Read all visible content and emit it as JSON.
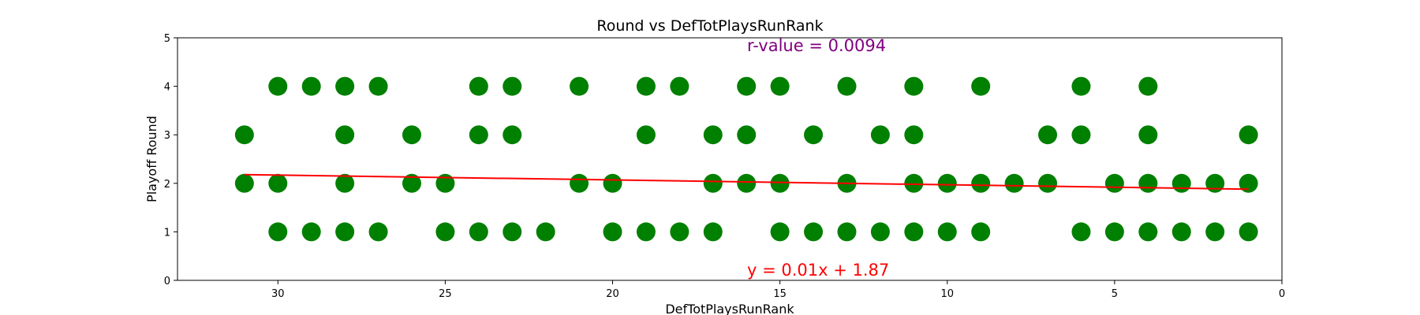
{
  "chart_data": {
    "type": "scatter",
    "title": "Round vs DefTotPlaysRunRank",
    "xlabel": "DefTotPlaysRunRank",
    "ylabel": "Playoff Round",
    "xlim": [
      33,
      0
    ],
    "ylim": [
      0,
      5
    ],
    "x_inverted": true,
    "xticks": [
      30,
      25,
      20,
      15,
      10,
      5,
      0
    ],
    "yticks": [
      0,
      1,
      2,
      3,
      4,
      5
    ],
    "grid": false,
    "marker_color": "#008000",
    "points": [
      [
        30,
        4
      ],
      [
        29,
        4
      ],
      [
        28,
        4
      ],
      [
        27,
        4
      ],
      [
        24,
        4
      ],
      [
        23,
        4
      ],
      [
        21,
        4
      ],
      [
        19,
        4
      ],
      [
        18,
        4
      ],
      [
        16,
        4
      ],
      [
        15,
        4
      ],
      [
        13,
        4
      ],
      [
        11,
        4
      ],
      [
        9,
        4
      ],
      [
        6,
        4
      ],
      [
        4,
        4
      ],
      [
        31,
        3
      ],
      [
        28,
        3
      ],
      [
        26,
        3
      ],
      [
        24,
        3
      ],
      [
        23,
        3
      ],
      [
        19,
        3
      ],
      [
        17,
        3
      ],
      [
        16,
        3
      ],
      [
        14,
        3
      ],
      [
        12,
        3
      ],
      [
        11,
        3
      ],
      [
        7,
        3
      ],
      [
        6,
        3
      ],
      [
        4,
        3
      ],
      [
        1,
        3
      ],
      [
        31,
        2
      ],
      [
        30,
        2
      ],
      [
        28,
        2
      ],
      [
        26,
        2
      ],
      [
        25,
        2
      ],
      [
        21,
        2
      ],
      [
        20,
        2
      ],
      [
        17,
        2
      ],
      [
        16,
        2
      ],
      [
        15,
        2
      ],
      [
        13,
        2
      ],
      [
        11,
        2
      ],
      [
        10,
        2
      ],
      [
        9,
        2
      ],
      [
        8,
        2
      ],
      [
        7,
        2
      ],
      [
        5,
        2
      ],
      [
        4,
        2
      ],
      [
        3,
        2
      ],
      [
        2,
        2
      ],
      [
        1,
        2
      ],
      [
        30,
        1
      ],
      [
        29,
        1
      ],
      [
        28,
        1
      ],
      [
        27,
        1
      ],
      [
        25,
        1
      ],
      [
        24,
        1
      ],
      [
        23,
        1
      ],
      [
        22,
        1
      ],
      [
        20,
        1
      ],
      [
        19,
        1
      ],
      [
        18,
        1
      ],
      [
        17,
        1
      ],
      [
        15,
        1
      ],
      [
        14,
        1
      ],
      [
        13,
        1
      ],
      [
        12,
        1
      ],
      [
        11,
        1
      ],
      [
        10,
        1
      ],
      [
        9,
        1
      ],
      [
        6,
        1
      ],
      [
        5,
        1
      ],
      [
        4,
        1
      ],
      [
        3,
        1
      ],
      [
        2,
        1
      ],
      [
        1,
        1
      ]
    ],
    "regression": {
      "slope": 0.01,
      "intercept": 1.87,
      "x_range": [
        31,
        1
      ],
      "color": "#ff0000",
      "equation_label": "y = 0.01x + 1.87"
    },
    "r_value_label": "r-value = 0.0094",
    "r_value_color": "#800080",
    "equation_color": "#ff0000"
  }
}
